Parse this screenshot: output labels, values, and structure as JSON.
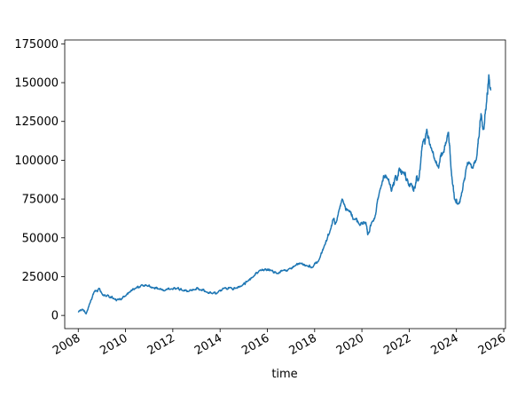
{
  "chart_data": {
    "type": "line",
    "title": "",
    "xlabel": "time",
    "ylabel": "",
    "xlim": [
      "2007-06-06",
      "2026-01-28"
    ],
    "ylim": [
      -8500,
      177500
    ],
    "x_ticks": [
      "2008",
      "2010",
      "2012",
      "2014",
      "2016",
      "2018",
      "2020",
      "2022",
      "2024",
      "2026"
    ],
    "y_ticks": [
      0,
      25000,
      50000,
      75000,
      100000,
      125000,
      150000,
      175000
    ],
    "y_tick_labels": [
      "0",
      "25000",
      "50000",
      "75000",
      "100000",
      "125000",
      "150000",
      "175000"
    ],
    "grid": false,
    "legend": "none",
    "color": "#1f77b4",
    "series": [
      {
        "x": [
          "2008-01-01",
          "2008-03-01",
          "2008-05-01",
          "2008-07-01",
          "2008-09-01",
          "2008-10-01",
          "2008-11-15",
          "2009-01-01",
          "2009-03-01",
          "2009-05-01",
          "2009-07-01",
          "2009-09-01",
          "2009-11-01",
          "2010-01-01",
          "2010-03-01",
          "2010-06-01",
          "2010-09-01",
          "2010-12-01",
          "2011-03-01",
          "2011-06-01",
          "2011-09-01",
          "2011-12-01",
          "2012-03-01",
          "2012-06-01",
          "2012-09-01",
          "2012-12-01",
          "2013-03-01",
          "2013-06-01",
          "2013-09-01",
          "2013-12-01",
          "2014-03-01",
          "2014-06-01",
          "2014-09-01",
          "2014-12-01",
          "2015-03-01",
          "2015-06-01",
          "2015-09-01",
          "2015-12-01",
          "2016-03-01",
          "2016-06-01",
          "2016-09-01",
          "2016-12-01",
          "2017-03-01",
          "2017-06-01",
          "2017-09-01",
          "2017-12-01",
          "2018-03-01",
          "2018-06-01",
          "2018-09-01",
          "2018-10-15",
          "2018-12-01",
          "2019-03-01",
          "2019-06-01",
          "2019-09-01",
          "2019-12-01",
          "2020-03-01",
          "2020-04-01",
          "2020-06-01",
          "2020-08-01",
          "2020-10-01",
          "2020-12-01",
          "2021-02-01",
          "2021-04-01",
          "2021-06-01",
          "2021-08-01",
          "2021-10-01",
          "2021-12-01",
          "2022-02-01",
          "2022-04-01",
          "2022-05-01",
          "2022-06-01",
          "2022-08-01",
          "2022-10-01",
          "2022-12-01",
          "2023-02-01",
          "2023-04-01",
          "2023-06-01",
          "2023-08-01",
          "2023-09-01",
          "2023-10-01",
          "2023-11-01",
          "2023-12-01",
          "2024-02-01",
          "2024-04-01",
          "2024-06-01",
          "2024-08-01",
          "2024-09-01",
          "2024-11-01",
          "2024-12-15",
          "2025-01-15",
          "2025-03-01",
          "2025-04-15",
          "2025-05-15",
          "2025-06-15"
        ],
        "y": [
          2000,
          4000,
          1000,
          8000,
          15000,
          16000,
          17500,
          14000,
          12500,
          11500,
          11000,
          10500,
          10500,
          12500,
          15000,
          17500,
          19500,
          19000,
          18000,
          17000,
          16000,
          17000,
          17500,
          16000,
          15500,
          16500,
          16500,
          15000,
          14000,
          15000,
          17500,
          18000,
          17500,
          19000,
          22000,
          25000,
          29000,
          30000,
          29000,
          27000,
          29000,
          30000,
          32000,
          33500,
          32000,
          31000,
          35000,
          45000,
          55000,
          62000,
          60000,
          75000,
          68000,
          62000,
          58000,
          60000,
          52000,
          60000,
          65000,
          80000,
          90000,
          88000,
          80000,
          90000,
          95000,
          92000,
          88000,
          85000,
          82000,
          90000,
          88000,
          112000,
          120000,
          108000,
          100000,
          95000,
          104000,
          112000,
          118000,
          100000,
          85000,
          75000,
          72000,
          80000,
          95000,
          98000,
          95000,
          100000,
          115000,
          130000,
          120000,
          140000,
          155000,
          145000
        ]
      }
    ]
  }
}
